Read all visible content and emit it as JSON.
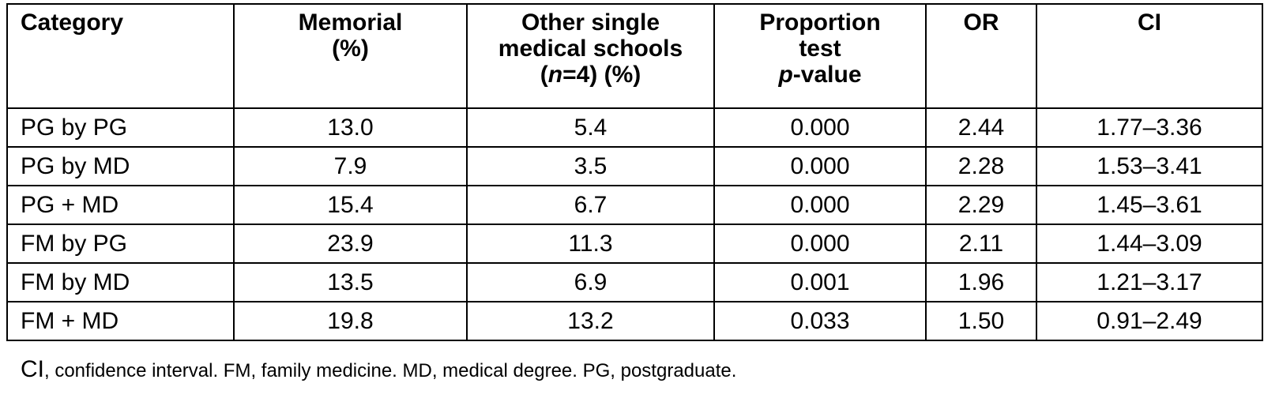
{
  "table": {
    "headers": {
      "category": "Category",
      "memorial": [
        "Memorial",
        "(%)"
      ],
      "other": {
        "line1": "Other single",
        "line2": "medical schools",
        "line3_open": "(",
        "line3_n": "n",
        "line3_rest": "=4) (%)"
      },
      "proportion": {
        "line1": "Proportion",
        "line2": "test",
        "line3_p": "p",
        "line3_rest": "-value"
      },
      "or": "OR",
      "ci": "CI"
    },
    "rows": [
      {
        "category": "PG by PG",
        "memorial": "13.0",
        "other": "5.4",
        "p_value": "0.000",
        "or": "2.44",
        "ci": "1.77–3.36"
      },
      {
        "category": "PG by MD",
        "memorial": "7.9",
        "other": "3.5",
        "p_value": "0.000",
        "or": "2.28",
        "ci": "1.53–3.41"
      },
      {
        "category": "PG + MD",
        "memorial": "15.4",
        "other": "6.7",
        "p_value": "0.000",
        "or": "2.29",
        "ci": "1.45–3.61"
      },
      {
        "category": "FM by PG",
        "memorial": "23.9",
        "other": "11.3",
        "p_value": "0.000",
        "or": "2.11",
        "ci": "1.44–3.09"
      },
      {
        "category": "FM by MD",
        "memorial": "13.5",
        "other": "6.9",
        "p_value": "0.001",
        "or": "1.96",
        "ci": "1.21–3.17"
      },
      {
        "category": "FM + MD",
        "memorial": "19.8",
        "other": "13.2",
        "p_value": "0.033",
        "or": "1.50",
        "ci": "0.91–2.49"
      }
    ]
  },
  "footnote": {
    "ci_abbr": "CI",
    "text": ", confidence interval. FM, family medicine. MD, medical degree. PG, postgraduate."
  }
}
